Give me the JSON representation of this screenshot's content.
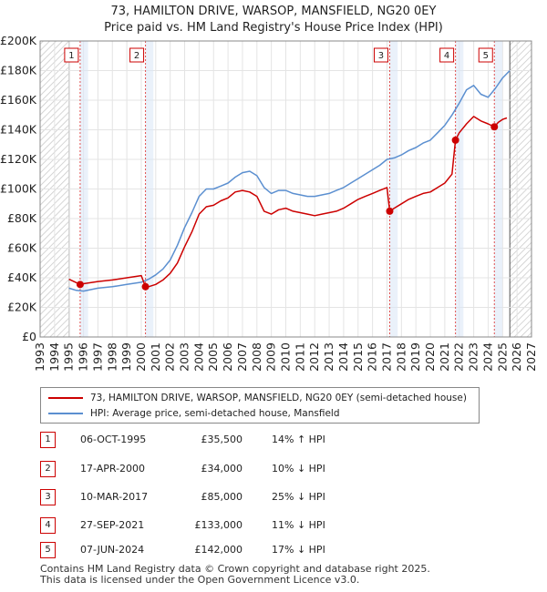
{
  "title_line1": "73, HAMILTON DRIVE, WARSOP, MANSFIELD, NG20 0EY",
  "title_line2": "Price paid vs. HM Land Registry's House Price Index (HPI)",
  "colors": {
    "property": "#cc0000",
    "hpi": "#5b8fd0",
    "future_hatch": "#cccccc",
    "shade": "#dce8f7"
  },
  "legend": {
    "property": "73, HAMILTON DRIVE, WARSOP, MANSFIELD, NG20 0EY (semi-detached house)",
    "hpi": "HPI: Average price, semi-detached house, Mansfield"
  },
  "sales": [
    {
      "num": "1",
      "date": "06-OCT-1995",
      "price": "£35,500",
      "hpi": "14% ↑ HPI"
    },
    {
      "num": "2",
      "date": "17-APR-2000",
      "price": "£34,000",
      "hpi": "10% ↓ HPI"
    },
    {
      "num": "3",
      "date": "10-MAR-2017",
      "price": "£85,000",
      "hpi": "25% ↓ HPI"
    },
    {
      "num": "4",
      "date": "27-SEP-2021",
      "price": "£133,000",
      "hpi": "11% ↓ HPI"
    },
    {
      "num": "5",
      "date": "07-JUN-2024",
      "price": "£142,000",
      "hpi": "17% ↓ HPI"
    }
  ],
  "footer_line1": "Contains HM Land Registry data © Crown copyright and database right 2025.",
  "footer_line2": "This data is licensed under the Open Government Licence v3.0.",
  "chart_data": {
    "type": "line",
    "title": "Price paid vs. HM Land Registry's House Price Index (HPI)",
    "xlim": [
      1993,
      2027
    ],
    "ylim": [
      0,
      200000
    ],
    "x_ticks": [
      1993,
      1994,
      1995,
      1996,
      1997,
      1998,
      1999,
      2000,
      2001,
      2002,
      2003,
      2004,
      2005,
      2006,
      2007,
      2008,
      2009,
      2010,
      2011,
      2012,
      2013,
      2014,
      2015,
      2016,
      2017,
      2018,
      2019,
      2020,
      2021,
      2022,
      2023,
      2024,
      2025,
      2026,
      2027
    ],
    "y_ticks": [
      0,
      20000,
      40000,
      60000,
      80000,
      100000,
      120000,
      140000,
      160000,
      180000,
      200000
    ],
    "y_tick_labels": [
      "£0",
      "£20K",
      "£40K",
      "£60K",
      "£80K",
      "£100K",
      "£120K",
      "£140K",
      "£160K",
      "£180K",
      "£200K"
    ],
    "data_start": 1995.0,
    "data_end": 2025.5,
    "sale_points": [
      {
        "num": "1",
        "x": 1995.77,
        "y": 35500
      },
      {
        "num": "2",
        "x": 2000.29,
        "y": 34000
      },
      {
        "num": "3",
        "x": 2017.19,
        "y": 85000
      },
      {
        "num": "4",
        "x": 2021.74,
        "y": 133000
      },
      {
        "num": "5",
        "x": 2024.43,
        "y": 142000
      }
    ],
    "series": [
      {
        "name": "HPI: Average price, semi-detached house, Mansfield",
        "x": [
          1995.0,
          1995.5,
          1996.0,
          1996.5,
          1997.0,
          1998.0,
          1999.0,
          2000.0,
          2000.5,
          2001.0,
          2001.5,
          2002.0,
          2002.5,
          2003.0,
          2003.5,
          2004.0,
          2004.5,
          2005.0,
          2005.5,
          2006.0,
          2006.5,
          2007.0,
          2007.5,
          2008.0,
          2008.5,
          2009.0,
          2009.5,
          2010.0,
          2010.5,
          2011.0,
          2011.5,
          2012.0,
          2012.5,
          2013.0,
          2013.5,
          2014.0,
          2014.5,
          2015.0,
          2015.5,
          2016.0,
          2016.5,
          2017.0,
          2017.5,
          2018.0,
          2018.5,
          2019.0,
          2019.5,
          2020.0,
          2020.5,
          2021.0,
          2021.5,
          2022.0,
          2022.5,
          2023.0,
          2023.5,
          2024.0,
          2024.5,
          2025.0,
          2025.5
        ],
        "values": [
          33000,
          31500,
          31000,
          32000,
          33000,
          34000,
          35500,
          37000,
          39000,
          42000,
          46000,
          52000,
          62000,
          74000,
          84000,
          95000,
          100000,
          100000,
          102000,
          104000,
          108000,
          111000,
          112000,
          109000,
          101000,
          97000,
          99000,
          99000,
          97000,
          96000,
          95000,
          95000,
          96000,
          97000,
          99000,
          101000,
          104000,
          107000,
          110000,
          113000,
          116000,
          120000,
          121000,
          123000,
          126000,
          128000,
          131000,
          133000,
          138000,
          143000,
          150000,
          158000,
          167000,
          170000,
          164000,
          162000,
          168000,
          175000,
          180000
        ]
      },
      {
        "name": "73, HAMILTON DRIVE, WARSOP, MANSFIELD, NG20 0EY (semi-detached house)",
        "x": [
          1995.0,
          1995.77,
          1996.0,
          1997.0,
          1998.0,
          1999.0,
          2000.0,
          2000.29,
          2000.5,
          2001.0,
          2001.5,
          2002.0,
          2002.5,
          2003.0,
          2003.5,
          2004.0,
          2004.5,
          2005.0,
          2005.5,
          2006.0,
          2006.5,
          2007.0,
          2007.5,
          2008.0,
          2008.5,
          2009.0,
          2009.5,
          2010.0,
          2010.5,
          2011.0,
          2011.5,
          2012.0,
          2012.5,
          2013.0,
          2013.5,
          2014.0,
          2014.5,
          2015.0,
          2015.5,
          2016.0,
          2016.5,
          2017.0,
          2017.19,
          2017.5,
          2018.0,
          2018.5,
          2019.0,
          2019.5,
          2020.0,
          2020.5,
          2021.0,
          2021.5,
          2021.74,
          2022.0,
          2022.5,
          2023.0,
          2023.5,
          2024.0,
          2024.43,
          2024.7,
          2025.0,
          2025.3
        ],
        "values": [
          39000,
          35500,
          36000,
          37500,
          38500,
          40000,
          41500,
          34000,
          34000,
          35500,
          38500,
          43000,
          50000,
          61000,
          71000,
          83000,
          88000,
          89000,
          92000,
          94000,
          98000,
          99000,
          98000,
          95000,
          85000,
          83000,
          86000,
          87000,
          85000,
          84000,
          83000,
          82000,
          83000,
          84000,
          85000,
          87000,
          90000,
          93000,
          95000,
          97000,
          99000,
          101000,
          85000,
          87000,
          90000,
          93000,
          95000,
          97000,
          98000,
          101000,
          104000,
          110000,
          133000,
          138000,
          144000,
          149000,
          146000,
          144000,
          142000,
          145000,
          147000,
          148000
        ]
      }
    ]
  }
}
